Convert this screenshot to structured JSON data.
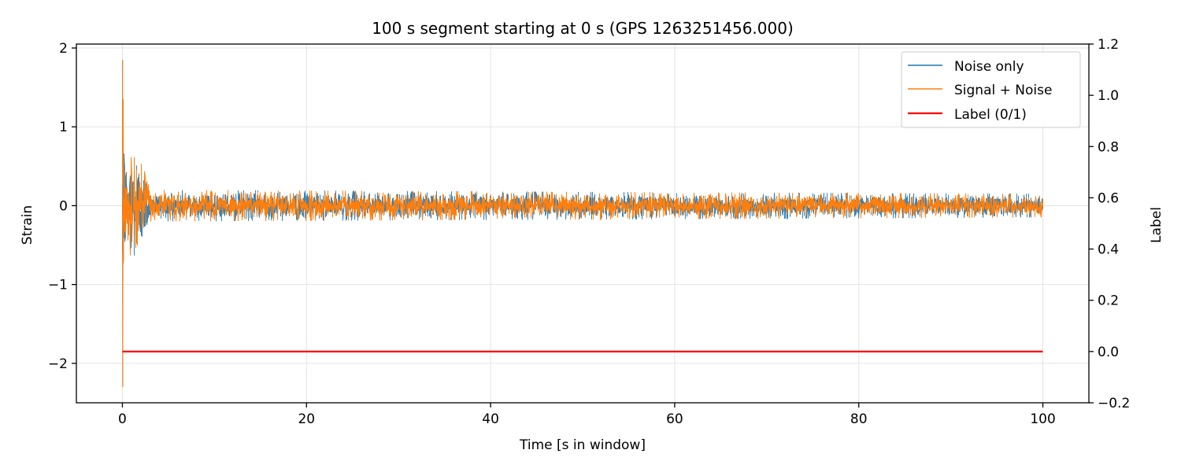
{
  "chart_data": {
    "type": "line",
    "title": "100 s segment starting at 0 s (GPS 1263251456.000)",
    "xlabel": "Time [s in window]",
    "ylabel": "Strain",
    "y2label": "Label",
    "xlim": [
      -5,
      105
    ],
    "ylim": [
      -2.5,
      2.05
    ],
    "y2lim": [
      -0.2,
      1.2
    ],
    "xticks": [
      0,
      20,
      40,
      60,
      80,
      100
    ],
    "yticks": [
      -2,
      -1,
      0,
      1,
      2
    ],
    "y2ticks": [
      -0.2,
      0.0,
      0.2,
      0.4,
      0.6,
      0.8,
      1.0,
      1.2
    ],
    "xtick_labels": [
      "0",
      "20",
      "40",
      "60",
      "80",
      "100"
    ],
    "ytick_labels": [
      "−2",
      "−1",
      "0",
      "1",
      "2"
    ],
    "y2tick_labels": [
      "−0.2",
      "0.0",
      "0.2",
      "0.4",
      "0.6",
      "0.8",
      "1.0",
      "1.2"
    ],
    "grid": true,
    "legend_placement": "top-right",
    "series": [
      {
        "name": "Noise only",
        "color": "#1f77b4",
        "axis": "left",
        "x_range": [
          0,
          100
        ],
        "typical_amplitude": 0.1,
        "envelope": [
          [
            0,
            1.8
          ],
          [
            0.3,
            0.6
          ],
          [
            1.5,
            0.8
          ],
          [
            3,
            0.2
          ],
          [
            100,
            0.15
          ]
        ],
        "y_min": -2.3,
        "y_max": 1.85
      },
      {
        "name": "Signal + Noise",
        "color": "#ff7f0e",
        "axis": "left",
        "x_range": [
          0,
          100
        ],
        "typical_amplitude": 0.1,
        "envelope": [
          [
            0,
            1.8
          ],
          [
            0.3,
            0.6
          ],
          [
            1.5,
            0.8
          ],
          [
            3,
            0.2
          ],
          [
            100,
            0.15
          ]
        ],
        "y_min": -2.3,
        "y_max": 1.85
      },
      {
        "name": "Label (0/1)",
        "color": "#ff0000",
        "axis": "right",
        "x": [
          0,
          100
        ],
        "values": [
          0,
          0
        ]
      }
    ]
  }
}
